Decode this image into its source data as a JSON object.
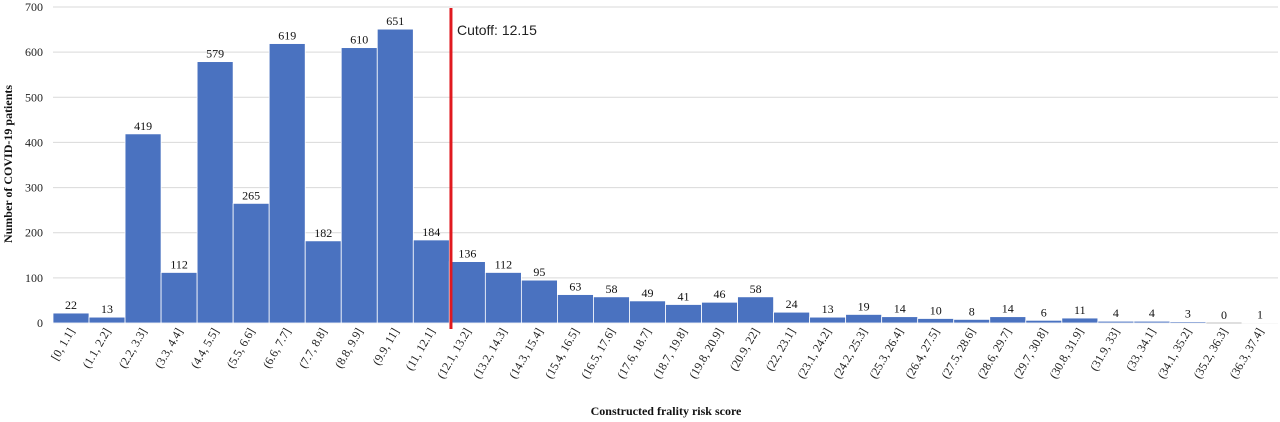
{
  "chart_data": {
    "type": "bar",
    "title": "",
    "xlabel": "Constructed  frality risk score",
    "ylabel": "Number of COVID-19 patients",
    "ylim": [
      0,
      700
    ],
    "yticks": [
      0,
      100,
      200,
      300,
      400,
      500,
      600,
      700
    ],
    "grid": true,
    "bar_color": "#4a72c0",
    "cutoff": {
      "label": "Cutoff: 12.15",
      "value": 12.15,
      "color": "#e0191f"
    },
    "categories": [
      "[0, 1.1]",
      "(1.1, 2.2]",
      "(2.2, 3.3]",
      "(3.3, 4.4]",
      "(4.4, 5.5]",
      "(5.5, 6.6]",
      "(6.6, 7.7]",
      "(7.7, 8.8]",
      "(8.8, 9.9]",
      "(9.9, 11]",
      "(11, 12.1]",
      "(12.1, 13.2]",
      "(13.2, 14.3]",
      "(14.3, 15.4]",
      "(15.4, 16.5]",
      "(16.5, 17.6]",
      "(17.6, 18.7]",
      "(18.7, 19.8]",
      "(19.8, 20.9]",
      "(20.9, 22]",
      "(22, 23.1]",
      "(23.1, 24.2]",
      "(24.2, 25.3]",
      "(25.3, 26.4]",
      "(26.4, 27.5]",
      "(27.5, 28.6]",
      "(28.6, 29.7]",
      "(29.7, 30.8]",
      "(30.8, 31.9]",
      "(31.9, 33]",
      "(33, 34.1]",
      "(34.1, 35.2]",
      "(35.2, 36.3]",
      "(36.3, 37.4]"
    ],
    "values": [
      22,
      13,
      419,
      112,
      579,
      265,
      619,
      182,
      610,
      651,
      184,
      136,
      112,
      95,
      63,
      58,
      49,
      41,
      46,
      58,
      24,
      13,
      19,
      14,
      10,
      8,
      14,
      6,
      11,
      4,
      4,
      3,
      0,
      1
    ]
  }
}
